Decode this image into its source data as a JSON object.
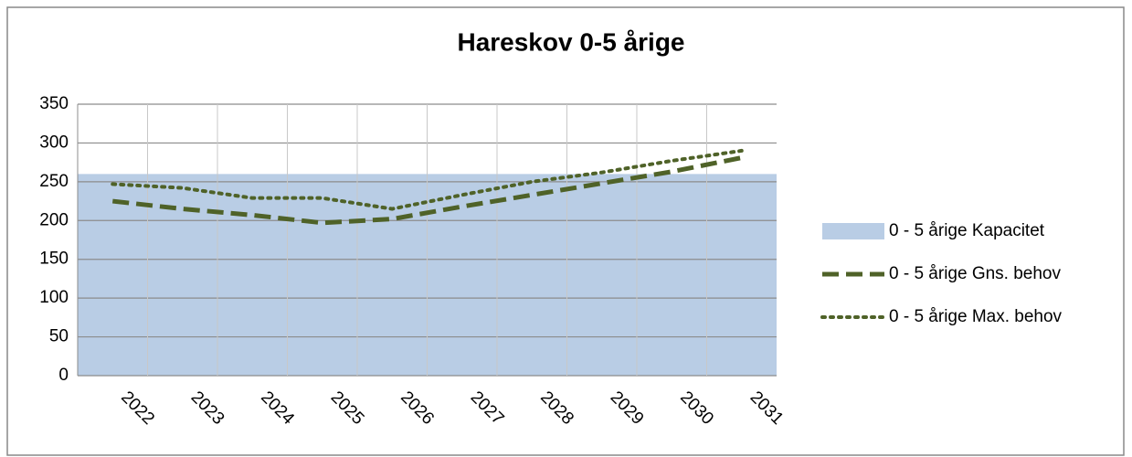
{
  "chart_data": {
    "type": "line",
    "title": "Hareskov 0-5 årige",
    "categories": [
      "2022",
      "2023",
      "2024",
      "2025",
      "2026",
      "2027",
      "2028",
      "2029",
      "2030",
      "2031"
    ],
    "series": [
      {
        "name": "0 - 5 årige Kapacitet",
        "type": "area",
        "color": "#b9cde5",
        "values": [
          260,
          260,
          260,
          260,
          260,
          260,
          260,
          260,
          260,
          260
        ]
      },
      {
        "name": "0 - 5 årige Gns. behov",
        "style": "dashed",
        "color": "#4f6228",
        "values": [
          225,
          215,
          207,
          197,
          202,
          218,
          233,
          248,
          263,
          281
        ]
      },
      {
        "name": "0 - 5 årige Max. behov",
        "style": "dotted",
        "color": "#4f6228",
        "values": [
          247,
          242,
          229,
          229,
          215,
          233,
          250,
          262,
          277,
          290
        ]
      }
    ],
    "ylim": [
      0,
      350
    ],
    "yticks": [
      0,
      50,
      100,
      150,
      200,
      250,
      300,
      350
    ],
    "grid": true,
    "legend": "right"
  }
}
